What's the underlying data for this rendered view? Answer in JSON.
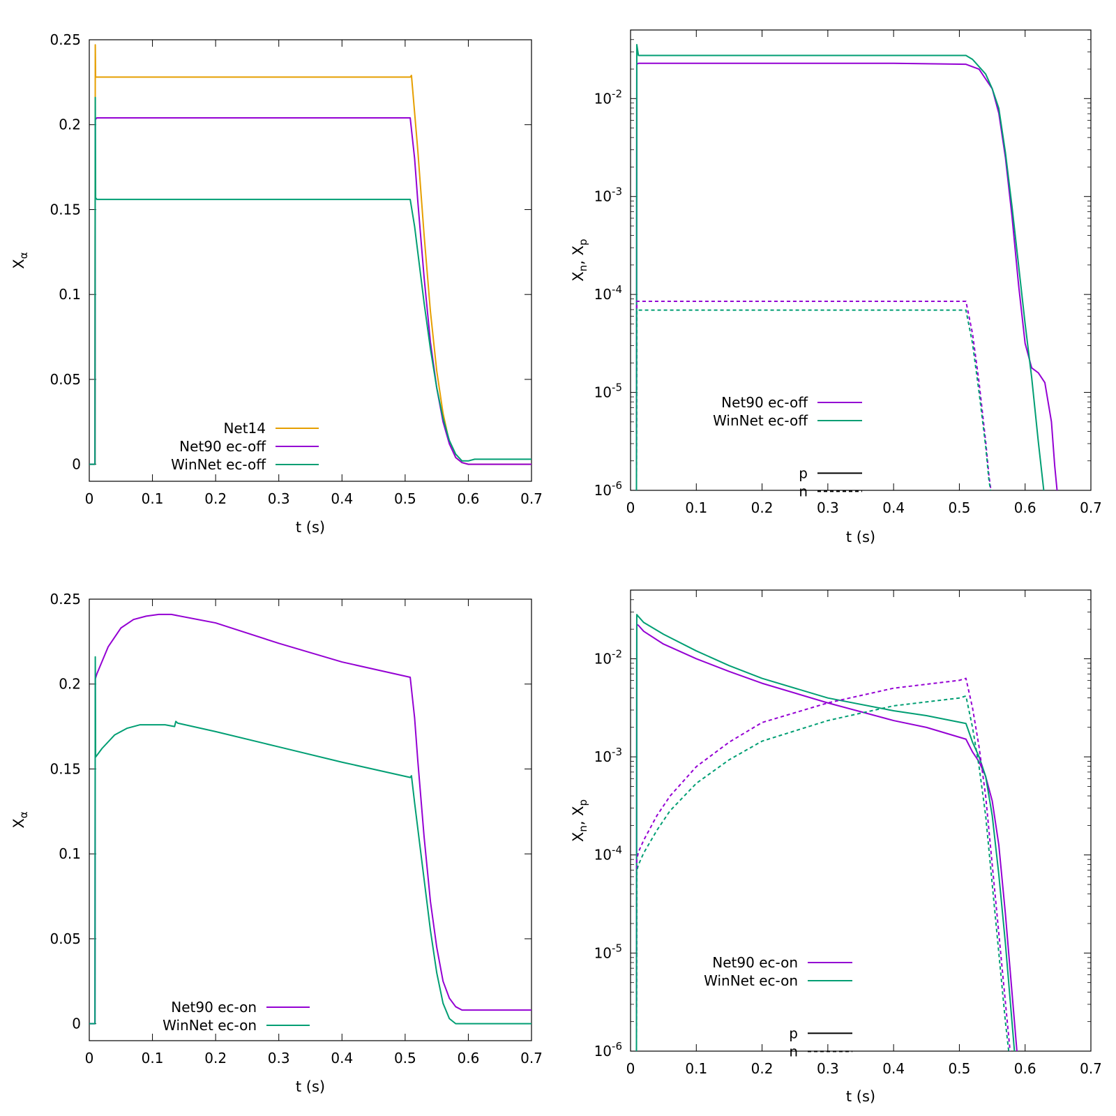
{
  "colors": {
    "orange": "#e69f00",
    "purple": "#9400d3",
    "green": "#009e73",
    "black": "#000000"
  },
  "chart_data": [
    {
      "id": "tl",
      "type": "line",
      "xlabel": "t (s)",
      "ylabel": {
        "base": "X",
        "sub": "α"
      },
      "xlim": [
        0,
        0.7
      ],
      "ylim": [
        -0.01,
        0.25
      ],
      "xticks": [
        "0",
        "0.1",
        "0.2",
        "0.3",
        "0.4",
        "0.5",
        "0.6",
        "0.7"
      ],
      "yticks": [
        "0",
        "0.05",
        "0.1",
        "0.15",
        "0.2",
        "0.25"
      ],
      "series": [
        {
          "name": "Net14",
          "color": "orange",
          "dash": false,
          "x": [
            0,
            0.009,
            0.0095,
            0.01,
            0.012,
            0.05,
            0.2,
            0.4,
            0.508,
            0.51,
            0.52,
            0.53,
            0.54,
            0.55,
            0.56,
            0.57,
            0.58,
            0.59,
            0.6,
            0.62,
            0.7
          ],
          "y": [
            0,
            0,
            0.247,
            0.228,
            0.228,
            0.228,
            0.228,
            0.228,
            0.228,
            0.229,
            0.185,
            0.135,
            0.09,
            0.055,
            0.03,
            0.013,
            0.004,
            0.001,
            0,
            0,
            0
          ]
        },
        {
          "name": "Net90 ec-off",
          "color": "purple",
          "dash": false,
          "x": [
            0,
            0.009,
            0.0095,
            0.012,
            0.05,
            0.2,
            0.4,
            0.508,
            0.515,
            0.52,
            0.53,
            0.54,
            0.55,
            0.56,
            0.57,
            0.58,
            0.59,
            0.6,
            0.62,
            0.7
          ],
          "y": [
            0,
            0,
            0.203,
            0.204,
            0.204,
            0.204,
            0.204,
            0.204,
            0.18,
            0.155,
            0.11,
            0.072,
            0.045,
            0.025,
            0.012,
            0.004,
            0.001,
            0,
            0,
            0
          ]
        },
        {
          "name": "WinNet ec-off",
          "color": "green",
          "dash": false,
          "x": [
            0,
            0.009,
            0.0095,
            0.01,
            0.012,
            0.05,
            0.2,
            0.4,
            0.508,
            0.515,
            0.52,
            0.53,
            0.54,
            0.55,
            0.56,
            0.57,
            0.58,
            0.59,
            0.6,
            0.61,
            0.62,
            0.7
          ],
          "y": [
            0,
            0,
            0.216,
            0.157,
            0.156,
            0.156,
            0.156,
            0.156,
            0.156,
            0.14,
            0.125,
            0.095,
            0.068,
            0.045,
            0.027,
            0.014,
            0.006,
            0.002,
            0.002,
            0.003,
            0.003,
            0.003
          ]
        }
      ],
      "legend": {
        "entries": [
          {
            "label": "Net14",
            "color": "orange",
            "dash": false
          },
          {
            "label": "Net90 ec-off",
            "color": "purple",
            "dash": false
          },
          {
            "label": "WinNet ec-off",
            "color": "green",
            "dash": false
          }
        ]
      }
    },
    {
      "id": "tr",
      "type": "line",
      "xlabel": "t (s)",
      "ylabel": {
        "base": "X",
        "sub": "n",
        "mid": ", X",
        "sub2": "p"
      },
      "xscale": "linear",
      "yscale": "log",
      "xlim": [
        0,
        0.7
      ],
      "ylim_log10": [
        -6,
        -1.3
      ],
      "xticks": [
        "0",
        "0.1",
        "0.2",
        "0.3",
        "0.4",
        "0.5",
        "0.6",
        "0.7"
      ],
      "yticks": [
        {
          "base": "10",
          "exp": "-6",
          "log": -6
        },
        {
          "base": "10",
          "exp": "-5",
          "log": -5
        },
        {
          "base": "10",
          "exp": "-4",
          "log": -4
        },
        {
          "base": "10",
          "exp": "-3",
          "log": -3
        },
        {
          "base": "10",
          "exp": "-2",
          "log": -2
        }
      ],
      "series": [
        {
          "name": "Net90 ec-off p",
          "color": "purple",
          "dash": false,
          "x": [
            0.009,
            0.0095,
            0.012,
            0.2,
            0.4,
            0.51,
            0.53,
            0.55,
            0.56,
            0.57,
            0.58,
            0.59,
            0.6,
            0.61,
            0.62,
            0.63,
            0.64,
            0.645,
            0.65,
            0.66,
            0.67,
            0.7
          ],
          "log10y": [
            -6,
            -1.65,
            -1.64,
            -1.64,
            -1.64,
            -1.65,
            -1.7,
            -1.9,
            -2.15,
            -2.6,
            -3.2,
            -3.9,
            -4.5,
            -4.75,
            -4.8,
            -4.9,
            -5.3,
            -5.75,
            -6.1,
            -6.3,
            -6.35,
            -6.35
          ]
        },
        {
          "name": "WinNet ec-off p",
          "color": "green",
          "dash": false,
          "x": [
            0.009,
            0.0095,
            0.012,
            0.2,
            0.4,
            0.51,
            0.52,
            0.54,
            0.55,
            0.56,
            0.57,
            0.58,
            0.59,
            0.6,
            0.61,
            0.62,
            0.63
          ],
          "log10y": [
            -6,
            -1.45,
            -1.56,
            -1.56,
            -1.56,
            -1.56,
            -1.6,
            -1.75,
            -1.9,
            -2.1,
            -2.55,
            -3.1,
            -3.7,
            -4.3,
            -4.85,
            -5.5,
            -6.1
          ]
        },
        {
          "name": "Net90 ec-off n",
          "color": "purple",
          "dash": true,
          "x": [
            0.009,
            0.0095,
            0.012,
            0.2,
            0.4,
            0.51,
            0.52,
            0.53,
            0.54,
            0.545,
            0.55
          ],
          "log10y": [
            -6,
            -4.07,
            -4.07,
            -4.07,
            -4.07,
            -4.07,
            -4.4,
            -4.9,
            -5.5,
            -5.85,
            -6.1
          ]
        },
        {
          "name": "WinNet ec-off n",
          "color": "green",
          "dash": true,
          "x": [
            0.009,
            0.0095,
            0.012,
            0.2,
            0.4,
            0.51,
            0.52,
            0.53,
            0.54,
            0.545,
            0.55
          ],
          "log10y": [
            -6,
            -4.16,
            -4.16,
            -4.16,
            -4.16,
            -4.16,
            -4.5,
            -5.0,
            -5.55,
            -5.9,
            -6.1
          ]
        }
      ],
      "legend": {
        "entries": [
          {
            "label": "Net90 ec-off",
            "color": "purple",
            "dash": false
          },
          {
            "label": "WinNet ec-off",
            "color": "green",
            "dash": false
          },
          {
            "label": "",
            "color": "",
            "dash": false,
            "spacer": true
          },
          {
            "label": "p",
            "color": "black",
            "dash": false
          },
          {
            "label": "n",
            "color": "black",
            "dash": true
          }
        ]
      }
    },
    {
      "id": "bl",
      "type": "line",
      "xlabel": "t (s)",
      "ylabel": {
        "base": "X",
        "sub": "α"
      },
      "xlim": [
        0,
        0.7
      ],
      "ylim": [
        -0.01,
        0.25
      ],
      "xticks": [
        "0",
        "0.1",
        "0.2",
        "0.3",
        "0.4",
        "0.5",
        "0.6",
        "0.7"
      ],
      "yticks": [
        "0",
        "0.05",
        "0.1",
        "0.15",
        "0.2",
        "0.25"
      ],
      "series": [
        {
          "name": "Net90 ec-on",
          "color": "purple",
          "dash": false,
          "x": [
            0,
            0.009,
            0.0095,
            0.012,
            0.03,
            0.05,
            0.07,
            0.09,
            0.11,
            0.13,
            0.2,
            0.3,
            0.4,
            0.508,
            0.515,
            0.52,
            0.53,
            0.54,
            0.55,
            0.56,
            0.57,
            0.58,
            0.59,
            0.6,
            0.62,
            0.7
          ],
          "y": [
            0,
            0,
            0.203,
            0.206,
            0.222,
            0.233,
            0.238,
            0.24,
            0.241,
            0.241,
            0.236,
            0.224,
            0.213,
            0.204,
            0.18,
            0.155,
            0.11,
            0.072,
            0.045,
            0.025,
            0.015,
            0.01,
            0.008,
            0.008,
            0.008,
            0.008
          ]
        },
        {
          "name": "WinNet ec-on",
          "color": "green",
          "dash": false,
          "x": [
            0,
            0.009,
            0.0095,
            0.01,
            0.012,
            0.02,
            0.04,
            0.06,
            0.08,
            0.1,
            0.12,
            0.135,
            0.137,
            0.14,
            0.2,
            0.3,
            0.4,
            0.508,
            0.51,
            0.515,
            0.52,
            0.53,
            0.54,
            0.55,
            0.56,
            0.57,
            0.58,
            0.59,
            0.6,
            0.7
          ],
          "y": [
            0,
            0,
            0.216,
            0.157,
            0.158,
            0.162,
            0.17,
            0.174,
            0.176,
            0.176,
            0.176,
            0.175,
            0.178,
            0.177,
            0.172,
            0.163,
            0.154,
            0.145,
            0.146,
            0.13,
            0.115,
            0.085,
            0.055,
            0.03,
            0.012,
            0.003,
            0,
            0,
            0,
            0
          ]
        }
      ],
      "legend": {
        "entries": [
          {
            "label": "Net90 ec-on",
            "color": "purple",
            "dash": false
          },
          {
            "label": "WinNet ec-on",
            "color": "green",
            "dash": false
          }
        ]
      }
    },
    {
      "id": "br",
      "type": "line",
      "xlabel": "t (s)",
      "ylabel": {
        "base": "X",
        "sub": "n",
        "mid": ", X",
        "sub2": "p"
      },
      "xscale": "linear",
      "yscale": "log",
      "xlim": [
        0,
        0.7
      ],
      "ylim_log10": [
        -6,
        -1.3
      ],
      "xticks": [
        "0",
        "0.1",
        "0.2",
        "0.3",
        "0.4",
        "0.5",
        "0.6",
        "0.7"
      ],
      "yticks": [
        {
          "base": "10",
          "exp": "-6",
          "log": -6
        },
        {
          "base": "10",
          "exp": "-5",
          "log": -5
        },
        {
          "base": "10",
          "exp": "-4",
          "log": -4
        },
        {
          "base": "10",
          "exp": "-3",
          "log": -3
        },
        {
          "base": "10",
          "exp": "-2",
          "log": -2
        }
      ],
      "series": [
        {
          "name": "Net90 ec-on p",
          "color": "purple",
          "dash": false,
          "x": [
            0.009,
            0.0095,
            0.012,
            0.02,
            0.05,
            0.1,
            0.15,
            0.2,
            0.3,
            0.4,
            0.45,
            0.51,
            0.52,
            0.53,
            0.54,
            0.55,
            0.56,
            0.57,
            0.58,
            0.59
          ],
          "log10y": [
            -6,
            -1.65,
            -1.66,
            -1.72,
            -1.85,
            -2.0,
            -2.13,
            -2.25,
            -2.45,
            -2.63,
            -2.7,
            -2.82,
            -2.95,
            -3.05,
            -3.2,
            -3.45,
            -3.9,
            -4.6,
            -5.4,
            -6.2
          ]
        },
        {
          "name": "WinNet ec-on p",
          "color": "green",
          "dash": false,
          "x": [
            0.009,
            0.0095,
            0.012,
            0.02,
            0.05,
            0.1,
            0.15,
            0.2,
            0.3,
            0.4,
            0.45,
            0.51,
            0.52,
            0.53,
            0.54,
            0.55,
            0.56,
            0.57,
            0.58,
            0.585
          ],
          "log10y": [
            -6,
            -1.55,
            -1.57,
            -1.63,
            -1.75,
            -1.92,
            -2.07,
            -2.2,
            -2.4,
            -2.53,
            -2.58,
            -2.66,
            -2.85,
            -3.0,
            -3.2,
            -3.6,
            -4.2,
            -4.9,
            -5.7,
            -6.1
          ]
        },
        {
          "name": "Net90 ec-on n",
          "color": "purple",
          "dash": true,
          "x": [
            0.009,
            0.0095,
            0.012,
            0.02,
            0.04,
            0.06,
            0.1,
            0.15,
            0.2,
            0.3,
            0.4,
            0.5,
            0.51,
            0.52,
            0.53,
            0.54,
            0.55,
            0.56,
            0.57,
            0.58
          ],
          "log10y": [
            -6,
            -4.05,
            -3.97,
            -3.85,
            -3.6,
            -3.4,
            -3.1,
            -2.85,
            -2.65,
            -2.45,
            -2.3,
            -2.22,
            -2.2,
            -2.5,
            -2.9,
            -3.4,
            -4.1,
            -4.8,
            -5.5,
            -6.2
          ]
        },
        {
          "name": "WinNet ec-on n",
          "color": "green",
          "dash": true,
          "x": [
            0.009,
            0.0095,
            0.012,
            0.02,
            0.04,
            0.06,
            0.1,
            0.15,
            0.2,
            0.3,
            0.4,
            0.5,
            0.51,
            0.52,
            0.53,
            0.54,
            0.55,
            0.56,
            0.57,
            0.58
          ],
          "log10y": [
            -6,
            -4.16,
            -4.1,
            -3.98,
            -3.75,
            -3.55,
            -3.27,
            -3.03,
            -2.84,
            -2.63,
            -2.48,
            -2.4,
            -2.38,
            -2.7,
            -3.1,
            -3.6,
            -4.3,
            -5.0,
            -5.7,
            -6.3
          ]
        }
      ],
      "legend": {
        "entries": [
          {
            "label": "Net90 ec-on",
            "color": "purple",
            "dash": false
          },
          {
            "label": "WinNet ec-on",
            "color": "green",
            "dash": false
          },
          {
            "label": "",
            "color": "",
            "dash": false,
            "spacer": true
          },
          {
            "label": "p",
            "color": "black",
            "dash": false
          },
          {
            "label": "n",
            "color": "black",
            "dash": true
          }
        ]
      }
    }
  ]
}
